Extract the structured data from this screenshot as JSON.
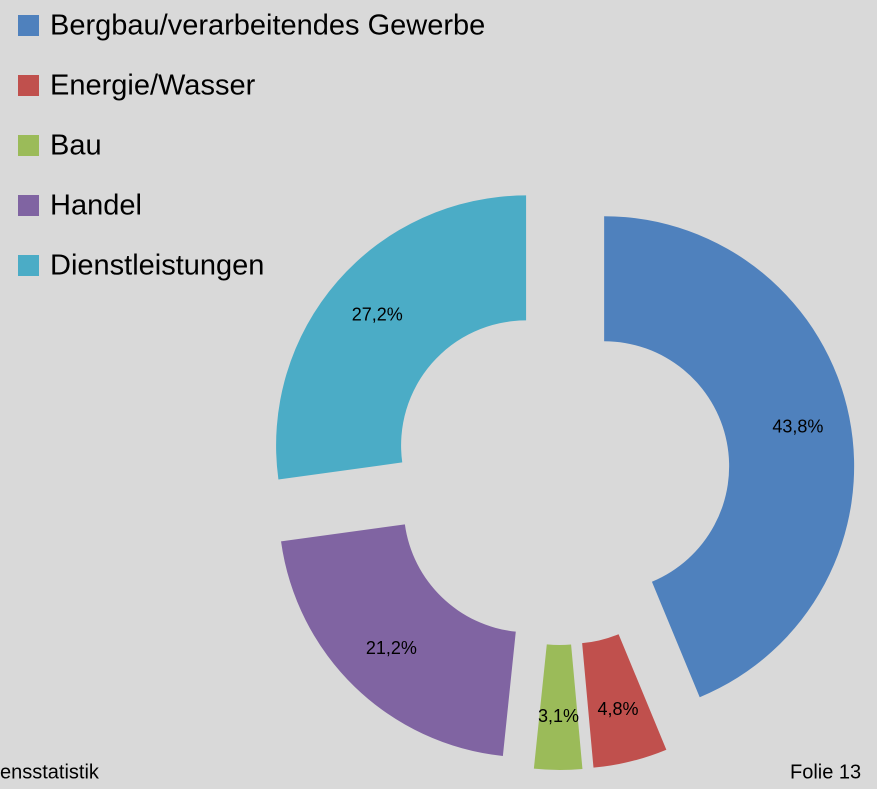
{
  "chart_data": {
    "type": "donut",
    "categories": [
      "Bergbau/verarbeitendes Gewerbe",
      "Energie/Wasser",
      "Bau",
      "Handel",
      "Dienstleistungen"
    ],
    "values": [
      43.8,
      4.8,
      3.1,
      21.2,
      27.2
    ],
    "value_labels": [
      "43,8%",
      "4,8%",
      "3,1%",
      "21,2%",
      "27,2%"
    ],
    "colors": [
      "#4f81bd",
      "#c0504d",
      "#9bbb59",
      "#8064a2",
      "#4bacc6"
    ],
    "legend": "top-left"
  },
  "footer": {
    "left": "ensstatistik",
    "right": "Folie 13"
  }
}
